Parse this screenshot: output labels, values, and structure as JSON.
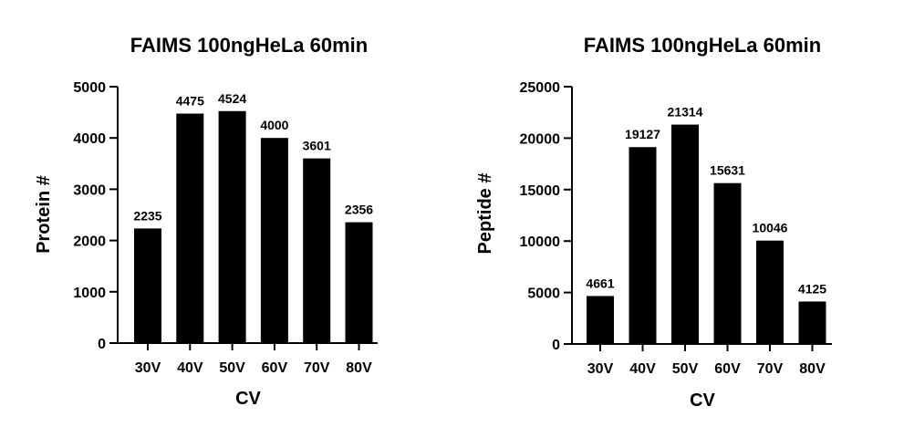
{
  "chart_data": [
    {
      "type": "bar",
      "title": "FAIMS 100ngHeLa 60min",
      "xlabel": "CV",
      "ylabel": "Protein #",
      "categories": [
        "30V",
        "40V",
        "50V",
        "60V",
        "70V",
        "80V"
      ],
      "values": [
        2235,
        4475,
        4524,
        4000,
        3601,
        2356
      ],
      "data_labels": [
        "2235",
        "4475",
        "4524",
        "4000",
        "3601",
        "2356"
      ],
      "ylim": [
        0,
        5000
      ],
      "yticks": [
        0,
        1000,
        2000,
        3000,
        4000,
        5000
      ],
      "ytick_labels": [
        "0",
        "1000",
        "2000",
        "3000",
        "4000",
        "5000"
      ],
      "bar_color": "#000000",
      "grid": false,
      "legend": "none"
    },
    {
      "type": "bar",
      "title": "FAIMS 100ngHeLa 60min",
      "xlabel": "CV",
      "ylabel": "Peptide #",
      "categories": [
        "30V",
        "40V",
        "50V",
        "60V",
        "70V",
        "80V"
      ],
      "values": [
        4661,
        19127,
        21314,
        15631,
        10046,
        4125
      ],
      "data_labels": [
        "4661",
        "19127",
        "21314",
        "15631",
        "10046",
        "4125"
      ],
      "ylim": [
        0,
        25000
      ],
      "yticks": [
        0,
        5000,
        10000,
        15000,
        20000,
        25000
      ],
      "ytick_labels": [
        "0",
        "5000",
        "10000",
        "15000",
        "20000",
        "25000"
      ],
      "bar_color": "#000000",
      "grid": false,
      "legend": "none"
    }
  ]
}
